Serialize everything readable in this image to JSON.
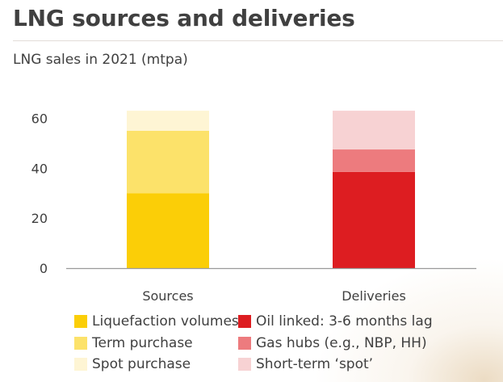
{
  "header": {
    "title": "LNG sources and deliveries",
    "subtitle": "LNG sales in 2021 (mtpa)"
  },
  "legend": {
    "sources": [
      {
        "label": "Liquefaction volumes",
        "color": "#fbce07"
      },
      {
        "label": "Term purchase",
        "color": "#fce26a"
      },
      {
        "label": "Spot purchase",
        "color": "#fef5d4"
      }
    ],
    "deliveries": [
      {
        "label": "Oil linked: 3-6 months lag",
        "color": "#dd1d21"
      },
      {
        "label": "Gas hubs (e.g., NBP, HH)",
        "color": "#ed7b7e"
      },
      {
        "label": "Short-term ‘spot’",
        "color": "#f7d2d3"
      }
    ]
  },
  "chart_data": {
    "type": "bar",
    "stacked": true,
    "title": "LNG sales in 2021 (mtpa)",
    "categories": [
      "Sources",
      "Deliveries"
    ],
    "ylim": [
      0,
      64
    ],
    "yticks": [
      0,
      20,
      40,
      60
    ],
    "grid": false,
    "legend_position": "bottom",
    "series": [
      {
        "name": "Liquefaction volumes",
        "stack": "Sources",
        "color": "#fbce07",
        "values": [
          30,
          null
        ]
      },
      {
        "name": "Term purchase",
        "stack": "Sources",
        "color": "#fce26a",
        "values": [
          25,
          null
        ]
      },
      {
        "name": "Spot purchase",
        "stack": "Sources",
        "color": "#fef5d4",
        "values": [
          8,
          null
        ]
      },
      {
        "name": "Oil linked: 3-6 months lag",
        "stack": "Deliveries",
        "color": "#dd1d21",
        "values": [
          null,
          38.5
        ]
      },
      {
        "name": "Gas hubs (e.g., NBP, HH)",
        "stack": "Deliveries",
        "color": "#ed7b7e",
        "values": [
          null,
          9
        ]
      },
      {
        "name": "Short-term ‘spot’",
        "stack": "Deliveries",
        "color": "#f7d2d3",
        "values": [
          null,
          15.5
        ]
      }
    ]
  }
}
